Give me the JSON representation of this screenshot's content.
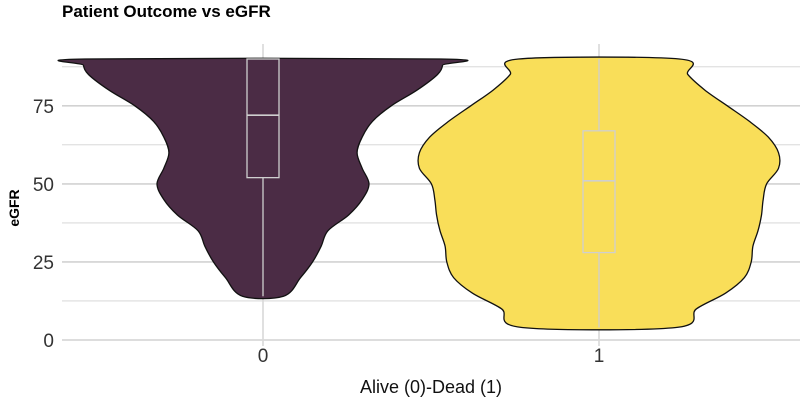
{
  "chart_data": {
    "type": "violin",
    "title": "Patient Outcome vs eGFR",
    "xlabel": "Alive (0)-Dead (1)",
    "ylabel": "eGFR",
    "ylim": [
      0,
      96
    ],
    "yticks": [
      0,
      25,
      50,
      75
    ],
    "categories": [
      "0",
      "1"
    ],
    "grid": true,
    "legend": "none",
    "violins": [
      {
        "category": "0",
        "color": "#4b2c45",
        "min": 14,
        "max": 90,
        "profile": [
          [
            14,
            0.12
          ],
          [
            20,
            0.22
          ],
          [
            25,
            0.29
          ],
          [
            30,
            0.34
          ],
          [
            35,
            0.38
          ],
          [
            40,
            0.5
          ],
          [
            45,
            0.58
          ],
          [
            50,
            0.62
          ],
          [
            55,
            0.58
          ],
          [
            60,
            0.55
          ],
          [
            65,
            0.58
          ],
          [
            70,
            0.64
          ],
          [
            75,
            0.75
          ],
          [
            80,
            0.9
          ],
          [
            85,
            1.02
          ],
          [
            88,
            1.05
          ],
          [
            90,
            1.04
          ]
        ],
        "box": {
          "q1": 52,
          "median": 72,
          "q3": 90
        }
      },
      {
        "category": "1",
        "color": "#f9de59",
        "min": 4,
        "max": 90,
        "profile": [
          [
            4,
            0.45
          ],
          [
            10,
            0.57
          ],
          [
            15,
            0.74
          ],
          [
            20,
            0.85
          ],
          [
            25,
            0.89
          ],
          [
            30,
            0.9
          ],
          [
            35,
            0.93
          ],
          [
            40,
            0.95
          ],
          [
            45,
            0.96
          ],
          [
            50,
            0.98
          ],
          [
            55,
            1.05
          ],
          [
            60,
            1.05
          ],
          [
            65,
            0.99
          ],
          [
            70,
            0.88
          ],
          [
            75,
            0.75
          ],
          [
            80,
            0.62
          ],
          [
            85,
            0.52
          ],
          [
            90,
            0.47
          ]
        ],
        "box": {
          "q1": 28,
          "median": 51,
          "q3": 67
        }
      }
    ]
  }
}
